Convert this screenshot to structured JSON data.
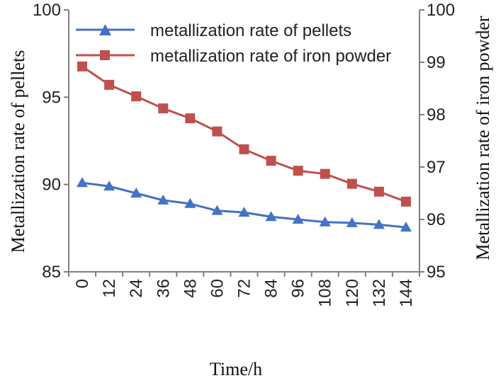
{
  "chart_data": {
    "type": "line",
    "categories": [
      "0",
      "12",
      "24",
      "36",
      "48",
      "60",
      "72",
      "84",
      "96",
      "108",
      "120",
      "132",
      "144"
    ],
    "xlabel": "Time/h",
    "ylabel_left": "Metallization rate of pellets",
    "ylabel_right": "Metallization rate of iron powder",
    "ylim_left": [
      85,
      100
    ],
    "ylim_right": [
      95,
      100
    ],
    "yticks_left": [
      "85",
      "90",
      "95",
      "100"
    ],
    "yticks_right": [
      "95",
      "96",
      "97",
      "98",
      "99",
      "100"
    ],
    "grid": false,
    "legend_position": "top",
    "series": [
      {
        "name": "metallization rate of pellets",
        "axis": "left",
        "marker": "triangle",
        "color": "#4472c4",
        "values": [
          90.1,
          89.9,
          89.5,
          89.1,
          88.9,
          88.5,
          88.4,
          88.15,
          88.0,
          87.85,
          87.8,
          87.7,
          87.55
        ]
      },
      {
        "name": "metallization rate of iron powder",
        "axis": "right",
        "marker": "square",
        "color": "#c0504d",
        "values": [
          98.92,
          98.57,
          98.35,
          98.12,
          97.93,
          97.68,
          97.34,
          97.12,
          96.93,
          96.87,
          96.68,
          96.53,
          96.34
        ]
      }
    ]
  }
}
